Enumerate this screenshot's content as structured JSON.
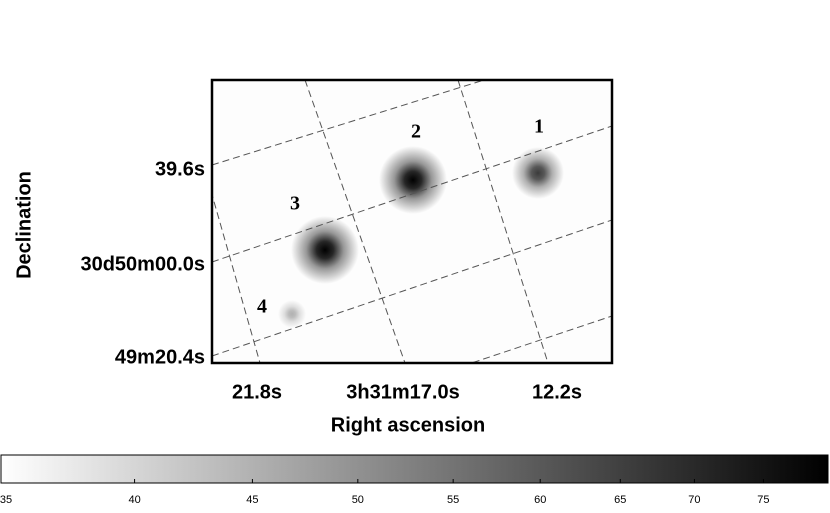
{
  "image": {
    "xlabel": "Right ascension",
    "ylabel": "Declination",
    "xticks": [
      "21.8s",
      "3h31m17.0s",
      "12.2s"
    ],
    "yticks": [
      "39.6s",
      "30d50m00.0s",
      "49m20.4s"
    ],
    "sources": [
      {
        "label": "1",
        "peak": 66
      },
      {
        "label": "2",
        "peak": 80
      },
      {
        "label": "3",
        "peak": 80
      },
      {
        "label": "4",
        "peak": 45
      }
    ]
  },
  "colorbar": {
    "scale": "log",
    "lim": [
      35,
      80
    ],
    "ticks": [
      35,
      40,
      45,
      50,
      55,
      60,
      65,
      70,
      75
    ],
    "colors": [
      "#ffffff",
      "#000000"
    ]
  }
}
